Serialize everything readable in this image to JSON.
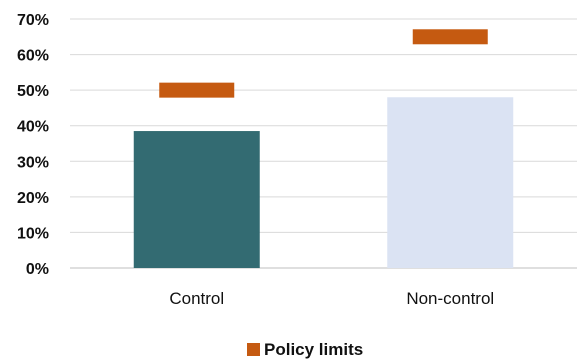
{
  "chart_data": {
    "type": "bar",
    "categories": [
      "Control",
      "Non-control"
    ],
    "series": [
      {
        "values": [
          38.5,
          48
        ],
        "colors": [
          "#336b72",
          "#dbe3f3"
        ]
      },
      {
        "name": "Policy limits",
        "marker": "dash",
        "values": [
          50,
          65
        ],
        "color": "#c55a11"
      }
    ],
    "ylim": [
      0,
      70
    ],
    "yticks": [
      "0%",
      "10%",
      "20%",
      "30%",
      "40%",
      "50%",
      "60%",
      "70%"
    ],
    "ytick_values": [
      0,
      10,
      20,
      30,
      40,
      50,
      60,
      70
    ],
    "grid": true,
    "legend": "bottom-center",
    "title": "",
    "xlabel": "",
    "ylabel": ""
  }
}
